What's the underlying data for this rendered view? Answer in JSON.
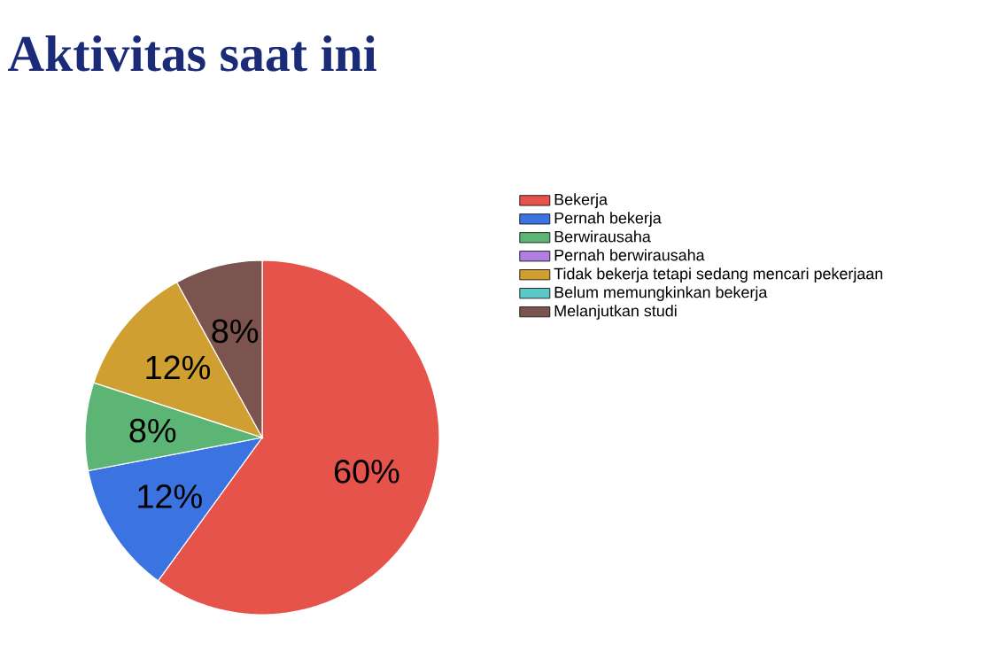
{
  "chart_data": {
    "type": "pie",
    "title": "Aktivitas saat ini",
    "categories": [
      "Bekerja",
      "Pernah bekerja",
      "Berwirausaha",
      "Pernah berwirausaha",
      "Tidak bekerja tetapi sedang mencari pekerjaan",
      "Belum memungkinkan bekerja",
      "Melanjutkan studi"
    ],
    "values": [
      60,
      12,
      8,
      0,
      12,
      0,
      8
    ],
    "colors": [
      "#e5534b",
      "#3b73e0",
      "#5cb574",
      "#b07fe0",
      "#cfa031",
      "#5bc8c8",
      "#7b5450"
    ],
    "value_labels": [
      "60%",
      "12%",
      "8%",
      null,
      "12%",
      null,
      "8%"
    ],
    "legend": "right"
  }
}
